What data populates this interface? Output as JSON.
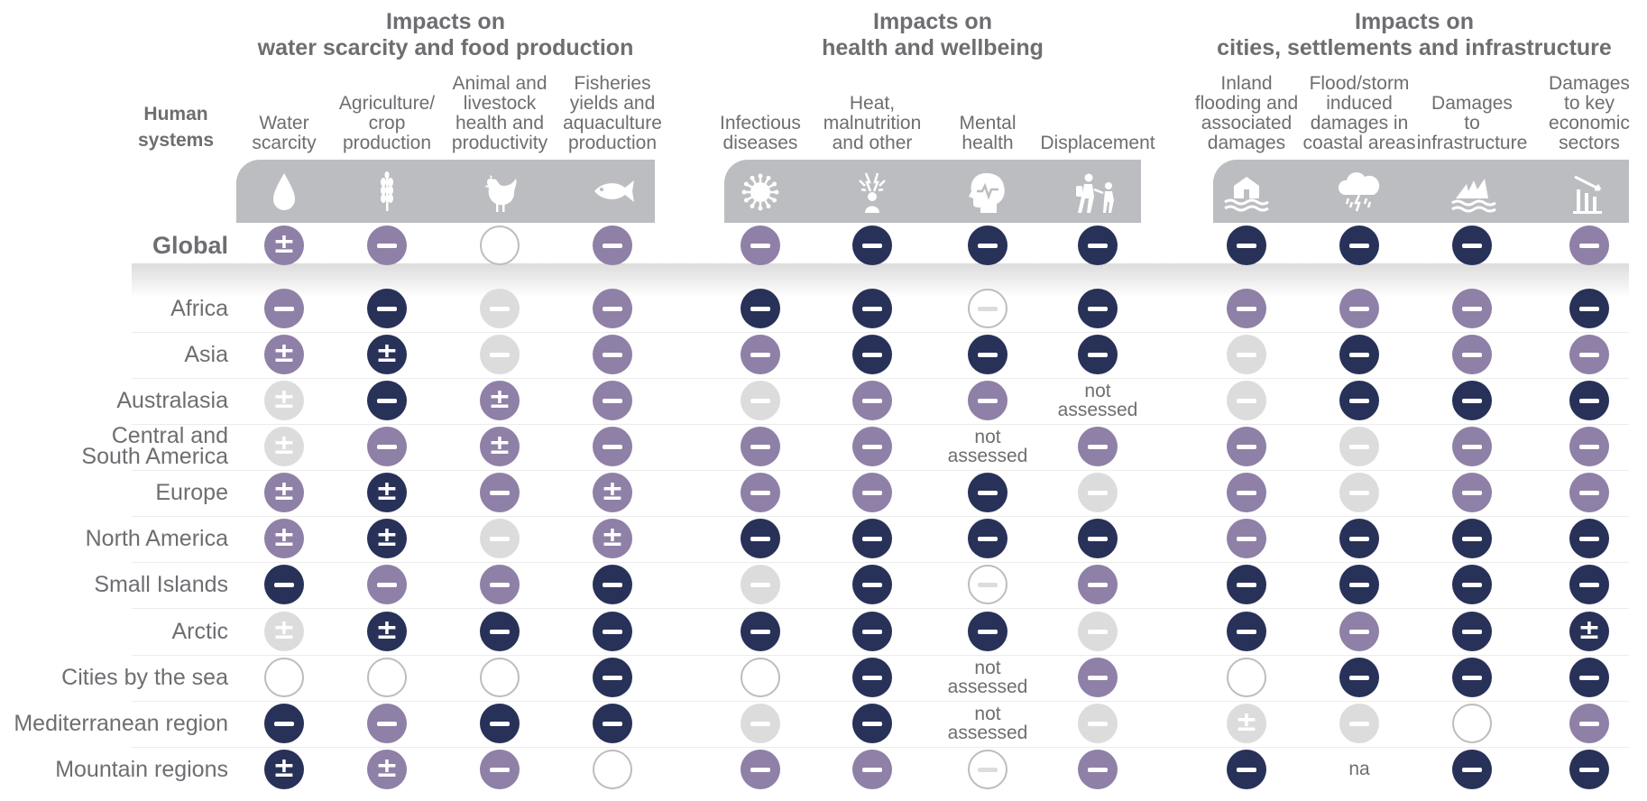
{
  "chart_data": {
    "type": "table",
    "row_header_label": "Human\nsystems",
    "groups": [
      {
        "title": "Impacts on\nwater scarcity and food production",
        "columns": [
          0,
          1,
          2,
          3
        ]
      },
      {
        "title": "Impacts on\nhealth and wellbeing",
        "columns": [
          4,
          5,
          6,
          7
        ]
      },
      {
        "title": "Impacts on\ncities, settlements and infrastructure",
        "columns": [
          8,
          9,
          10,
          11
        ]
      }
    ],
    "columns": [
      {
        "label": "Water\nscarcity",
        "icon": "water-drop-icon"
      },
      {
        "label": "Agriculture/\ncrop\nproduction",
        "icon": "wheat-icon"
      },
      {
        "label": "Animal and\nlivestock\nhealth and\nproductivity",
        "icon": "chicken-icon"
      },
      {
        "label": "Fisheries\nyields and\naquaculture\nproduction",
        "icon": "fish-icon"
      },
      {
        "label": "Infectious\ndiseases",
        "icon": "virus-icon"
      },
      {
        "label": "Heat,\nmalnutrition\nand other",
        "icon": "heat-person-icon"
      },
      {
        "label": "Mental\nhealth",
        "icon": "mind-icon"
      },
      {
        "label": "Displacement",
        "icon": "displacement-icon"
      },
      {
        "label": "Inland\nflooding and\nassociated\ndamages",
        "icon": "flooded-house-icon"
      },
      {
        "label": "Flood/storm\ninduced\ndamages in\ncoastal areas",
        "icon": "storm-cloud-icon"
      },
      {
        "label": "Damages\nto\ninfrastructure",
        "icon": "broken-infrastructure-icon"
      },
      {
        "label": "Damages\nto key\neconomic\nsectors",
        "icon": "declining-bars-icon"
      }
    ],
    "cell_legend": {
      "D-": "dark filled circle with minus",
      "M-": "medium purple circle with minus",
      "L-": "light grey circle with minus",
      "D±": "dark filled circle with plus-minus",
      "M±": "medium purple circle with plus-minus",
      "L±": "light grey circle with plus-minus",
      "O": "empty outlined circle",
      "O-": "outlined circle with faint minus",
      "NA": "not assessed",
      "na": "na"
    },
    "colors": {
      "dark": "#283158",
      "medium": "#8e80a6",
      "light": "#dcdcdc",
      "outline": "#bcbdc0",
      "band": "#bcbdc0"
    },
    "rows": [
      {
        "name": "Global",
        "cells": [
          "M±",
          "M-",
          "O",
          "M-",
          "M-",
          "D-",
          "D-",
          "D-",
          "D-",
          "D-",
          "D-",
          "M-"
        ]
      },
      {
        "name": "Africa",
        "cells": [
          "M-",
          "D-",
          "L-",
          "M-",
          "D-",
          "D-",
          "O-",
          "D-",
          "M-",
          "M-",
          "M-",
          "D-"
        ]
      },
      {
        "name": "Asia",
        "cells": [
          "M±",
          "D±",
          "L-",
          "M-",
          "M-",
          "D-",
          "D-",
          "D-",
          "L-",
          "D-",
          "M-",
          "M-"
        ]
      },
      {
        "name": "Australasia",
        "cells": [
          "L±",
          "D-",
          "M±",
          "M-",
          "L-",
          "M-",
          "M-",
          "NA",
          "L-",
          "D-",
          "D-",
          "D-"
        ]
      },
      {
        "name": "Central and\nSouth America",
        "cells": [
          "L±",
          "M-",
          "M±",
          "M-",
          "M-",
          "M-",
          "NA",
          "M-",
          "M-",
          "L-",
          "M-",
          "M-"
        ]
      },
      {
        "name": "Europe",
        "cells": [
          "M±",
          "D±",
          "M-",
          "M±",
          "M-",
          "M-",
          "D-",
          "L-",
          "M-",
          "L-",
          "M-",
          "M-"
        ]
      },
      {
        "name": "North America",
        "cells": [
          "M±",
          "D±",
          "L-",
          "M±",
          "D-",
          "D-",
          "D-",
          "D-",
          "M-",
          "D-",
          "D-",
          "D-"
        ]
      },
      {
        "name": "Small Islands",
        "cells": [
          "D-",
          "M-",
          "M-",
          "D-",
          "L-",
          "D-",
          "O-",
          "M-",
          "D-",
          "D-",
          "D-",
          "D-"
        ]
      },
      {
        "name": "Arctic",
        "cells": [
          "L±",
          "D±",
          "D-",
          "D-",
          "D-",
          "D-",
          "D-",
          "L-",
          "D-",
          "M-",
          "D-",
          "D±"
        ]
      },
      {
        "name": "Cities by the sea",
        "cells": [
          "O",
          "O",
          "O",
          "D-",
          "O",
          "D-",
          "NA",
          "M-",
          "O",
          "D-",
          "D-",
          "D-"
        ]
      },
      {
        "name": "Mediterranean region",
        "cells": [
          "D-",
          "M-",
          "D-",
          "D-",
          "L-",
          "D-",
          "NA",
          "L-",
          "L±",
          "L-",
          "O",
          "M-"
        ]
      },
      {
        "name": "Mountain regions",
        "cells": [
          "D±",
          "M±",
          "M-",
          "O",
          "M-",
          "M-",
          "O-",
          "M-",
          "D-",
          "na",
          "D-",
          "D-"
        ]
      }
    ],
    "not_assessed_text": "not\nassessed",
    "na_text": "na"
  }
}
